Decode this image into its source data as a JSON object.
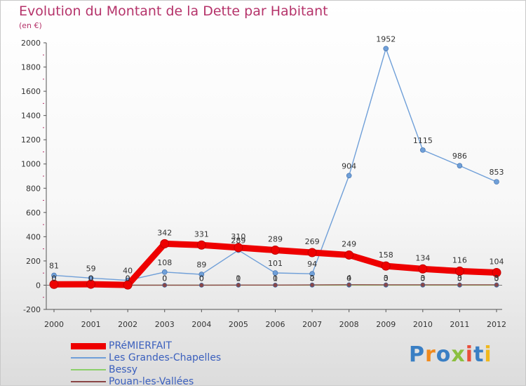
{
  "title": "Evolution du Montant de la Dette par Habitant",
  "subtitle": "(en €)",
  "logo": {
    "text": "Proxiti",
    "colors": [
      "#3a7fc4",
      "#f08a1d",
      "#3a7fc4",
      "#8cbf3f",
      "#e94f3a",
      "#3a7fc4",
      "#f0b81d"
    ]
  },
  "colors": {
    "title": "#b5336a",
    "legend_text": "#3a5fbd",
    "axis_text": "#333333",
    "tick_marks": "#b5336a"
  },
  "chart_data": {
    "type": "line",
    "title": "Evolution du Montant de la Dette par Habitant",
    "ylabel": "(en €)",
    "x": [
      "2000",
      "2001",
      "2002",
      "2003",
      "2004",
      "2005",
      "2006",
      "2007",
      "2008",
      "2009",
      "2010",
      "2011",
      "2012"
    ],
    "ylim": [
      -200,
      2000
    ],
    "yticks": [
      -200,
      0,
      200,
      400,
      600,
      800,
      1000,
      1200,
      1400,
      1600,
      1800,
      2000
    ],
    "grid": false,
    "legend_position": "bottom-left",
    "series": [
      {
        "name": "PRéMIERFAIT",
        "color": "#ee0000",
        "values": [
          7,
          8,
          2,
          342,
          331,
          310,
          289,
          269,
          249,
          158,
          134,
          116,
          104
        ],
        "labels": [
          "",
          "",
          "",
          "342",
          "331",
          "310",
          "289",
          "269",
          "249",
          "158",
          "134",
          "116",
          "104"
        ]
      },
      {
        "name": "Les Grandes-Chapelles",
        "color": "#6f9fd8",
        "values": [
          81,
          59,
          40,
          108,
          89,
          289,
          101,
          94,
          904,
          1952,
          1115,
          986,
          853
        ],
        "labels": [
          "81",
          "59",
          "40",
          "108",
          "89",
          "289",
          "101",
          "94",
          "904",
          "1952",
          "1115",
          "986",
          "853"
        ]
      },
      {
        "name": "Bessy",
        "color": "#8cd06a",
        "values": [
          0,
          0,
          0,
          0,
          0,
          0,
          0,
          0,
          0,
          0,
          0,
          0,
          0
        ],
        "labels": [
          "0",
          "0",
          "0",
          "0",
          "0",
          "0",
          "0",
          "0",
          "0",
          "0",
          "0",
          "0",
          "0"
        ]
      },
      {
        "name": "Pouan-les-Vallées",
        "color": "#8a4646",
        "values": [
          0,
          0,
          0,
          0,
          0,
          1,
          1,
          2,
          4,
          3,
          3,
          3,
          3
        ],
        "labels": [
          "0",
          "0",
          "0",
          "0",
          "0",
          "1",
          "1",
          "2",
          "4",
          "3",
          "3",
          "3",
          "3"
        ]
      }
    ]
  }
}
